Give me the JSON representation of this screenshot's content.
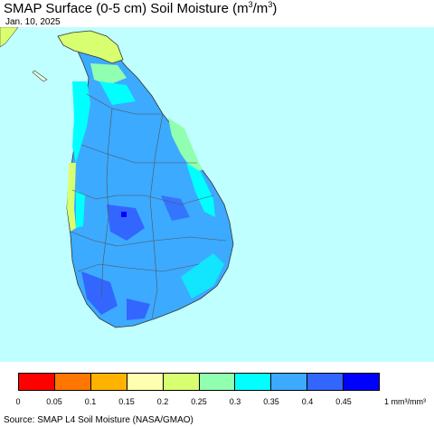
{
  "title": {
    "main": "SMAP Surface (0-5 cm) Soil Moisture (m",
    "sup1": "3",
    "mid": "/m",
    "sup2": "3",
    "end": ")"
  },
  "date": "Jan. 10, 2025",
  "legend": {
    "colors": [
      "#ff0000",
      "#ff7700",
      "#ffb300",
      "#ffffb0",
      "#d8ff70",
      "#90ffb0",
      "#00ffff",
      "#3caaff",
      "#3366ff",
      "#0000ff"
    ],
    "ticks": [
      "0",
      "0.05",
      "0.1",
      "0.15",
      "0.2",
      "0.25",
      "0.3",
      "0.35",
      "0.4",
      "0.45"
    ],
    "unit": "1 mm³/mm³"
  },
  "colors": {
    "ocean": "#c0ffff",
    "india_land": "#d8ff70",
    "island_base": "#3caaff"
  },
  "source": "Source: SMAP L4 Soil Moisture (NASA/GMAO)"
}
